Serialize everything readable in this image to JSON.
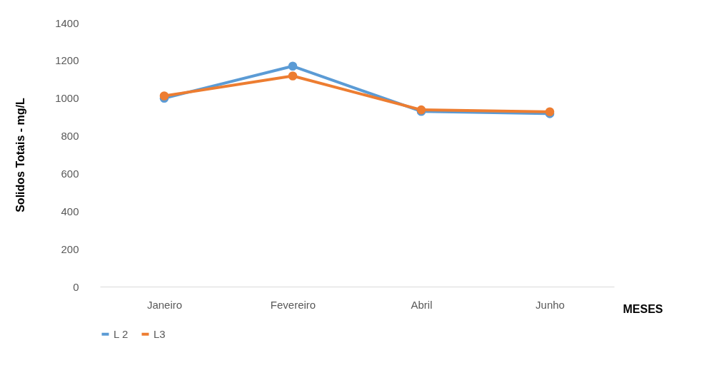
{
  "chart_data": {
    "type": "line",
    "ylabel": "Solidos Totais - mg/L",
    "xlabel": "MESES",
    "categories": [
      "Janeiro",
      "Fevereiro",
      "Abril",
      "Junho"
    ],
    "series": [
      {
        "name": "L 2",
        "color": "#5b9bd5",
        "values": [
          1000,
          1170,
          930,
          918
        ]
      },
      {
        "name": "L3",
        "color": "#ed7d31",
        "values": [
          1012,
          1118,
          938,
          928
        ]
      }
    ],
    "ylim": [
      0,
      1400
    ],
    "yticks": [
      0,
      200,
      400,
      600,
      800,
      1000,
      1200,
      1400
    ],
    "grid": false,
    "legend": "bottom",
    "marker": "circle",
    "line_style": "solid"
  }
}
